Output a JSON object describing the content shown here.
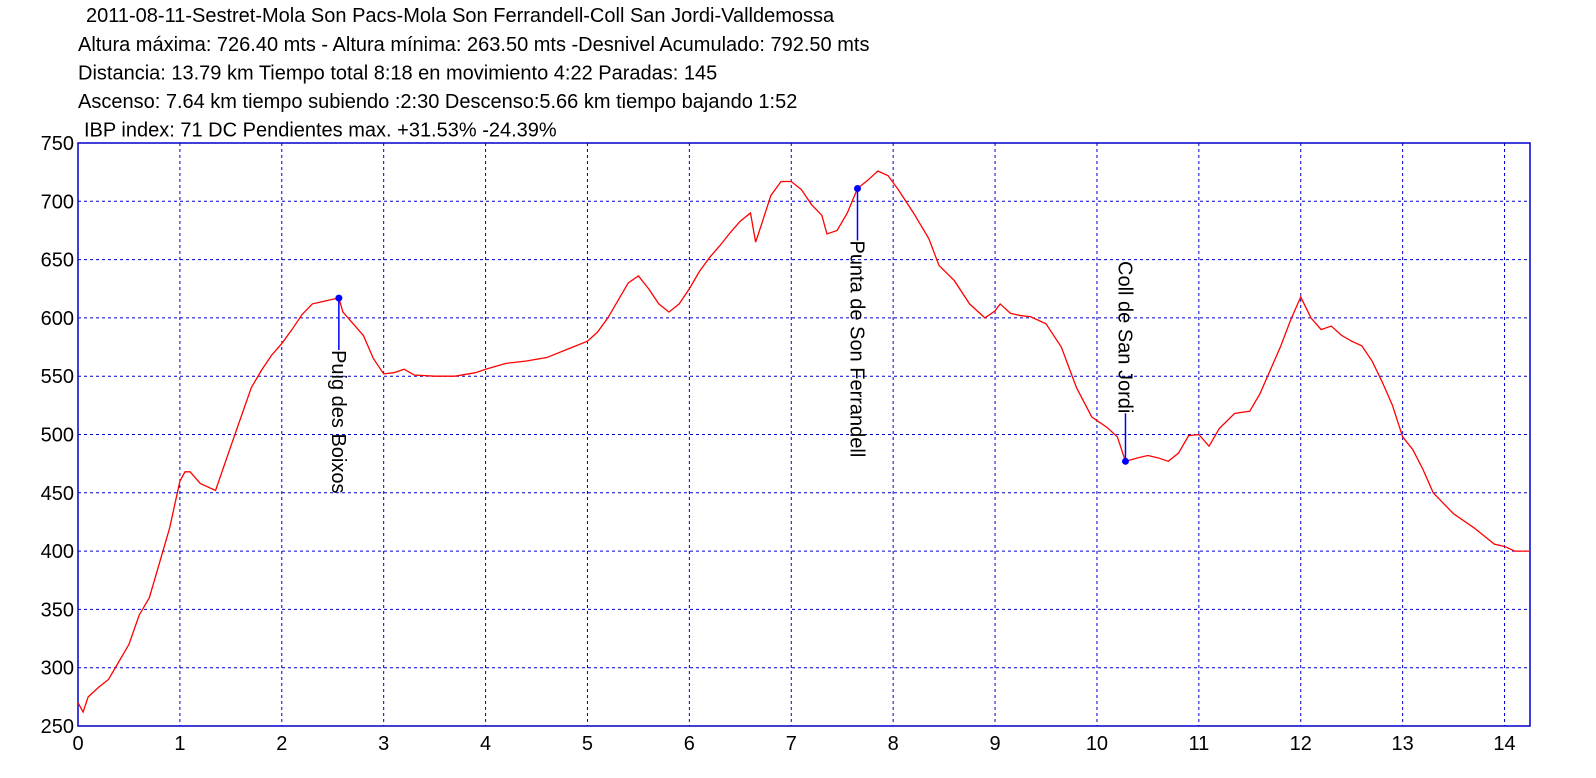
{
  "chart_data": {
    "type": "line",
    "title": "2011-08-11-Sestret-Mola Son Pacs-Mola Son Ferrandell-Coll San Jordi-Valldemossa",
    "subtitle_lines": [
      "Altura máxima: 726.40 mts - Altura mínima: 263.50 mts -Desnivel Acumulado: 792.50 mts",
      "Distancia: 13.79 km  Tiempo total 8:18  en movimiento 4:22 Paradas: 145",
      "Ascenso: 7.64 km  tiempo subiendo :2:30  Descenso:5.66 km tiempo bajando 1:52",
      "IBP index: 71 DC  Pendientes max. +31.53%  -24.39%"
    ],
    "x": [
      0,
      0.05,
      0.1,
      0.2,
      0.3,
      0.4,
      0.5,
      0.6,
      0.7,
      0.8,
      0.9,
      1.0,
      1.05,
      1.1,
      1.2,
      1.35,
      1.5,
      1.6,
      1.7,
      1.8,
      1.9,
      2.0,
      2.1,
      2.2,
      2.3,
      2.4,
      2.5,
      2.56,
      2.6,
      2.7,
      2.8,
      2.9,
      3.0,
      3.1,
      3.2,
      3.3,
      3.5,
      3.7,
      3.9,
      4.0,
      4.2,
      4.4,
      4.6,
      4.8,
      5.0,
      5.1,
      5.2,
      5.3,
      5.4,
      5.5,
      5.6,
      5.7,
      5.8,
      5.9,
      6.0,
      6.1,
      6.2,
      6.3,
      6.4,
      6.5,
      6.6,
      6.65,
      6.7,
      6.8,
      6.9,
      7.0,
      7.1,
      7.2,
      7.3,
      7.35,
      7.45,
      7.55,
      7.65,
      7.75,
      7.85,
      7.95,
      8.05,
      8.2,
      8.35,
      8.45,
      8.6,
      8.75,
      8.9,
      9.0,
      9.05,
      9.15,
      9.25,
      9.35,
      9.5,
      9.65,
      9.8,
      9.95,
      10.1,
      10.2,
      10.28,
      10.4,
      10.5,
      10.6,
      10.7,
      10.8,
      10.9,
      11.0,
      11.1,
      11.2,
      11.35,
      11.5,
      11.6,
      11.7,
      11.8,
      11.9,
      12.0,
      12.1,
      12.2,
      12.3,
      12.4,
      12.5,
      12.6,
      12.7,
      12.8,
      12.9,
      13.0,
      13.1,
      13.2,
      13.3,
      13.5,
      13.7,
      13.9,
      14.0,
      14.1,
      14.25
    ],
    "series": [
      {
        "color": "#ff0000",
        "values": [
          270,
          262,
          275,
          283,
          290,
          305,
          320,
          345,
          360,
          390,
          420,
          460,
          468,
          468,
          458,
          452,
          490,
          515,
          540,
          555,
          568,
          578,
          590,
          603,
          612,
          614,
          616,
          617,
          605,
          595,
          585,
          565,
          552,
          553,
          556,
          551,
          550,
          550,
          553,
          556,
          561,
          563,
          566,
          573,
          580,
          588,
          600,
          615,
          630,
          636,
          625,
          612,
          605,
          612,
          625,
          640,
          652,
          662,
          673,
          683,
          690,
          665,
          678,
          705,
          717,
          717,
          710,
          697,
          688,
          672,
          675,
          690,
          711,
          718,
          726,
          722,
          710,
          690,
          668,
          645,
          632,
          612,
          600,
          606,
          612,
          604,
          602,
          601,
          595,
          575,
          540,
          515,
          506,
          498,
          477,
          480,
          482,
          480,
          477,
          484,
          499,
          500,
          490,
          505,
          518,
          520,
          535,
          555,
          575,
          598,
          618,
          600,
          590,
          593,
          585,
          580,
          576,
          563,
          545,
          525,
          498,
          487,
          470,
          450,
          432,
          420,
          406,
          404,
          400,
          400
        ]
      }
    ],
    "annotations": [
      {
        "x": 2.56,
        "y": 617,
        "label": "Puig des Boixos",
        "position": "below"
      },
      {
        "x": 7.65,
        "y": 711,
        "label": "Punta de Son Ferrandell",
        "position": "below"
      },
      {
        "x": 10.28,
        "y": 477,
        "label": "Coll de San Jordi",
        "position": "above"
      }
    ],
    "annotation_color": "#0000ff",
    "xlim": [
      0,
      14.25
    ],
    "xticks": [
      0,
      1,
      2,
      3,
      4,
      5,
      6,
      7,
      8,
      9,
      10,
      11,
      12,
      13,
      14
    ],
    "ylim": [
      250,
      750
    ],
    "yticks": [
      250,
      300,
      350,
      400,
      450,
      500,
      550,
      600,
      650,
      700,
      750
    ],
    "grid": true,
    "grid_color": "#0000cc"
  }
}
